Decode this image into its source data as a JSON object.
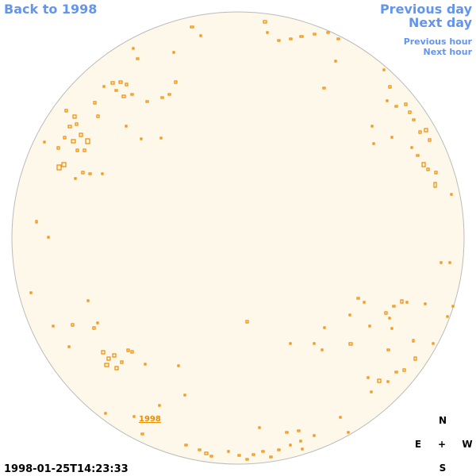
{
  "nav": {
    "back": "Back to 1998",
    "previous_day": "Previous day",
    "next_day": "Next day",
    "previous_hour": "Previous hour",
    "next_hour": "Next hour"
  },
  "disk": {
    "year_label": "1998"
  },
  "timestamp": "1998-01-25T14:23:33",
  "compass": {
    "north": "N",
    "east": "E",
    "center": "+",
    "west": "W",
    "south": "S"
  }
}
